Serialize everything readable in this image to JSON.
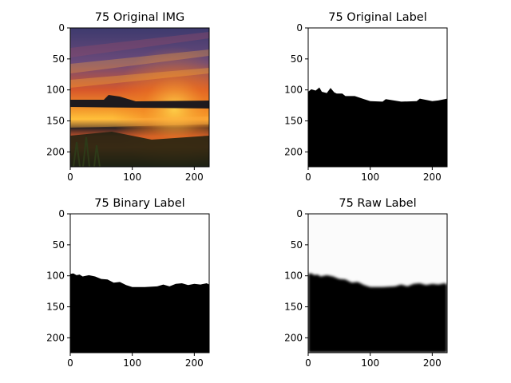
{
  "figure": {
    "background": "#ffffff"
  },
  "chart_data": [
    {
      "type": "image",
      "title": "75 Original IMG",
      "content": "photo: sunset over water with marsh; orange/purple streaked sky, dark foreground reeds",
      "xlim": [
        0,
        224
      ],
      "ylim": [
        224,
        0
      ],
      "xticks": [
        0,
        100,
        200
      ],
      "yticks": [
        0,
        50,
        100,
        150,
        200
      ],
      "colors": {
        "sky_top": "#3d3a6e",
        "sky_glow": "#f07a1e",
        "sun": "#ffc23a",
        "horizon": "#1e1a1e",
        "water": "#e0632a",
        "ground": "#1a2010"
      }
    },
    {
      "type": "image",
      "title": "75 Original Label",
      "content": "binary mask: white sky above, black below horizon",
      "xlim": [
        0,
        224
      ],
      "ylim": [
        224,
        0
      ],
      "xticks": [
        0,
        100,
        200
      ],
      "yticks": [
        0,
        50,
        100,
        150,
        200
      ],
      "horizon": {
        "x": [
          0,
          5,
          12,
          18,
          22,
          30,
          36,
          42,
          46,
          55,
          60,
          75,
          90,
          100,
          120,
          125,
          150,
          175,
          180,
          200,
          210,
          224
        ],
        "y": [
          103,
          99,
          101,
          96,
          103,
          105,
          97,
          104,
          106,
          106,
          110,
          110,
          115,
          118,
          119,
          115,
          119,
          118,
          114,
          118,
          117,
          114
        ]
      }
    },
    {
      "type": "image",
      "title": "75 Binary Label",
      "content": "binary mask: white sky above, black below horizon",
      "xlim": [
        0,
        224
      ],
      "ylim": [
        224,
        0
      ],
      "xticks": [
        0,
        100,
        200
      ],
      "yticks": [
        0,
        50,
        100,
        150,
        200
      ],
      "horizon": {
        "x": [
          0,
          5,
          10,
          15,
          20,
          30,
          40,
          50,
          60,
          70,
          80,
          90,
          100,
          120,
          140,
          150,
          160,
          170,
          180,
          190,
          200,
          210,
          220,
          224
        ],
        "y": [
          97,
          96,
          99,
          98,
          101,
          99,
          101,
          105,
          106,
          111,
          110,
          115,
          118,
          118,
          117,
          114,
          117,
          113,
          112,
          115,
          113,
          114,
          112,
          114
        ]
      }
    },
    {
      "type": "image",
      "title": "75 Raw Label",
      "content": "soft mask: near-white sky above, black below horizon, blurred boundary",
      "xlim": [
        0,
        224
      ],
      "ylim": [
        224,
        0
      ],
      "xticks": [
        0,
        100,
        200
      ],
      "yticks": [
        0,
        50,
        100,
        150,
        200
      ],
      "horizon": {
        "x": [
          0,
          5,
          10,
          15,
          20,
          30,
          40,
          50,
          60,
          70,
          80,
          90,
          100,
          120,
          140,
          150,
          160,
          170,
          180,
          190,
          200,
          210,
          220,
          224
        ],
        "y": [
          97,
          96,
          99,
          98,
          101,
          99,
          101,
          105,
          106,
          111,
          110,
          115,
          118,
          118,
          117,
          114,
          117,
          113,
          112,
          115,
          113,
          114,
          112,
          114
        ]
      }
    }
  ]
}
